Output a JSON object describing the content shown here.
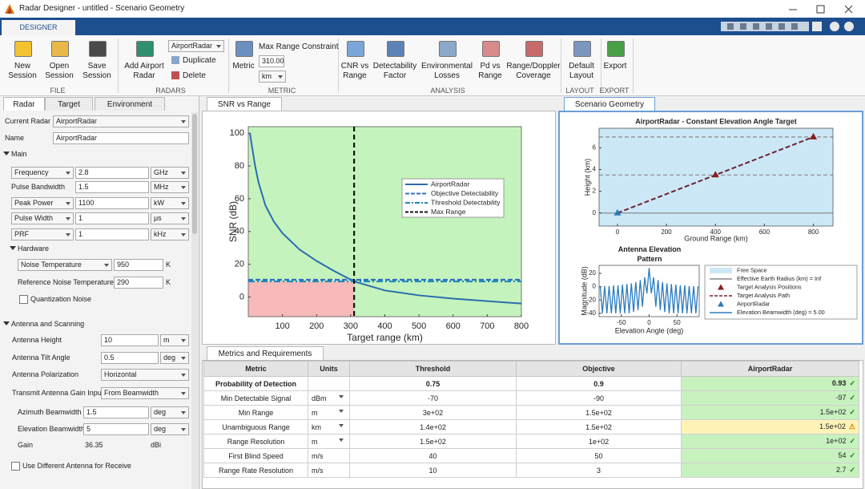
{
  "window": {
    "title": "Radar Designer - untitled - Scenario Geometry"
  },
  "toolstrip": {
    "tab": "DESIGNER",
    "groups": [
      {
        "label": "FILE",
        "buttons": [
          "New Session",
          "Open Session",
          "Save Session"
        ]
      },
      {
        "label": "RADARS",
        "buttons": [
          "Add Airport Radar"
        ],
        "radar": "AirportRadar",
        "actions": [
          "Duplicate",
          "Delete"
        ]
      },
      {
        "label": "METRIC",
        "buttons": [
          "Metric"
        ],
        "constraint": "Max Range Constraint",
        "constraint_value": "310.00",
        "constraint_unit": "km"
      },
      {
        "label": "ANALYSIS",
        "buttons": [
          "CNR vs Range",
          "Detectability Factor",
          "Environmental Losses",
          "Pd vs Range",
          "Range/Doppler Coverage"
        ]
      },
      {
        "label": "LAYOUT",
        "buttons": [
          "Default Layout"
        ]
      },
      {
        "label": "EXPORT",
        "buttons": [
          "Export"
        ]
      }
    ]
  },
  "left_panel": {
    "tabs": [
      "Radar",
      "Target",
      "Environment"
    ],
    "current_radar": {
      "label": "Current Radar",
      "value": "AirportRadar"
    },
    "name": {
      "label": "Name",
      "value": "AirportRadar"
    },
    "main": {
      "title": "Main",
      "fields": [
        {
          "label": "Frequency",
          "value": "2.8",
          "unit": "GHz"
        },
        {
          "label": "Pulse Bandwidth",
          "value": "1.5",
          "unit": "MHz"
        },
        {
          "label": "Peak Power",
          "value": "1100",
          "unit": "kW"
        },
        {
          "label": "Pulse Width",
          "value": "1",
          "unit": "μs"
        },
        {
          "label": "PRF",
          "value": "1",
          "unit": "kHz"
        }
      ]
    },
    "hardware": {
      "title": "Hardware",
      "fields": [
        {
          "label": "Noise Temperature",
          "value": "950",
          "unit": "K"
        },
        {
          "label": "Reference Noise Temperature",
          "value": "290",
          "unit": "K"
        }
      ],
      "checkbox": "Quantization Noise"
    },
    "antenna": {
      "title": "Antenna and Scanning",
      "fields": [
        {
          "label": "Antenna Height",
          "value": "10",
          "unit": "m"
        },
        {
          "label": "Antenna Tilt Angle",
          "value": "0.5",
          "unit": "deg"
        },
        {
          "label": "Antenna Polarization",
          "value": "Horizontal"
        },
        {
          "label": "Transmit Antenna Gain Input",
          "value": "From Beamwidth"
        },
        {
          "label": "Azimuth Beamwidth",
          "value": "1.5",
          "unit": "deg"
        },
        {
          "label": "Elevation Beamwidth",
          "value": "5",
          "unit": "deg"
        },
        {
          "label": "Gain",
          "value": "36.35",
          "unit": "dBi"
        }
      ],
      "checkbox": "Use Different Antenna for Receive"
    }
  },
  "snr_plot": {
    "tab": "SNR vs Range",
    "type": "line",
    "x_label": "Target range (km)",
    "y_label": "SNR (dB)",
    "xlim": [
      0,
      800
    ],
    "ylim": [
      -12,
      104
    ],
    "xticks": [
      100,
      200,
      300,
      400,
      500,
      600,
      700,
      800
    ],
    "yticks": [
      0,
      20,
      40,
      60,
      80,
      100
    ],
    "x": [
      5,
      10,
      20,
      30,
      50,
      75,
      100,
      150,
      200,
      250,
      310,
      400,
      500,
      600,
      700,
      800
    ],
    "series": [
      {
        "name": "AirportRadar",
        "color": "#2a6db0",
        "values": [
          100,
          93,
          80,
          70,
          56,
          46,
          39,
          29,
          22,
          16,
          9.5,
          4,
          1,
          -1,
          -2.5,
          -4
        ]
      }
    ],
    "objective_detectability": {
      "name": "Objective Detectability",
      "value": 10.5,
      "color": "#2f6fc4"
    },
    "threshold_detectability": {
      "name": "Threshold Detectability",
      "value": 9.5,
      "color": "#1f8bb8"
    },
    "max_range": {
      "name": "Max Range",
      "value": 310,
      "color": "#111111"
    },
    "pass_color": "#c5f3bd",
    "fail_color": "#f7b9b9"
  },
  "geometry_plot": {
    "tab": "Scenario Geometry",
    "type": "line",
    "title": "AirportRadar - Constant Elevation Angle Target",
    "x_label": "Ground Range (km)",
    "y_label": "Height (km)",
    "xlim": [
      -75,
      880
    ],
    "ylim": [
      -1.2,
      7.8
    ],
    "xticks": [
      0,
      200,
      400,
      600,
      800
    ],
    "yticks": [
      0,
      2,
      4,
      6
    ],
    "series": [
      {
        "name": "Target Analysis Path",
        "color": "#6e2234",
        "x": [
          0,
          400,
          800
        ],
        "values": [
          0,
          3.5,
          7
        ]
      },
      {
        "name": "Target Analysis Positions",
        "color": "#8a1c1c",
        "x": [
          400,
          800
        ],
        "values": [
          3.5,
          7
        ]
      },
      {
        "name": "AirportRadar",
        "color": "#2b7bbb",
        "x": [
          0
        ],
        "values": [
          0
        ]
      }
    ],
    "free_space": "Free Space",
    "free_space_color": "#cce8f6",
    "earth_radius": "Effective Earth Radius (km) = Inf"
  },
  "pattern_plot": {
    "type": "line",
    "title": "Antenna Elevation Pattern",
    "x_label": "Elevation Angle (deg)",
    "y_label": "Magnitude (dB)",
    "xlim": [
      -90,
      90
    ],
    "ylim": [
      -45,
      32
    ],
    "xticks": [
      -50,
      0,
      50
    ],
    "yticks": [
      -40,
      -20,
      0,
      20
    ],
    "x": [
      -88,
      -84,
      -80,
      -76,
      -72,
      -68,
      -64,
      -60,
      -56,
      -52,
      -48,
      -44,
      -40,
      -36,
      -32,
      -28,
      -24,
      -20,
      -16,
      -12,
      -8,
      -4,
      0,
      4,
      8,
      12,
      16,
      20,
      24,
      28,
      32,
      36,
      40,
      44,
      48,
      52,
      56,
      60,
      64,
      68,
      72,
      76,
      80,
      84,
      88
    ],
    "series": [
      {
        "color": "#2a7bc0",
        "values": [
          1,
          -40,
          1,
          -40,
          1,
          -40,
          2,
          -40,
          2,
          -40,
          3,
          -40,
          4,
          -40,
          5,
          -38,
          7,
          -35,
          10,
          -30,
          14,
          -10,
          28,
          -10,
          14,
          -30,
          10,
          -35,
          7,
          -38,
          5,
          -40,
          4,
          -40,
          3,
          -40,
          2,
          -40,
          2,
          -40,
          1,
          -40,
          1,
          -40,
          1
        ]
      }
    ],
    "beamwidth_note": "Elevation Beamwidth (deg) = 5.00"
  },
  "metrics": {
    "tab": "Metrics and Requirements",
    "columns": [
      "Metric",
      "Units",
      "Threshold",
      "Objective",
      "AirportRadar"
    ],
    "rows": [
      [
        "Probability of Detection",
        null,
        "0.75",
        "0.9",
        "0.93"
      ],
      [
        "Min Detectable Signal",
        "dBm",
        "-70",
        "-90",
        "-97"
      ],
      [
        "Min Range",
        "m",
        "3e+02",
        "1.5e+02",
        "1.5e+02"
      ],
      [
        "Unambiguous Range",
        "km",
        "1.4e+02",
        "1.5e+02",
        "1.5e+02"
      ],
      [
        "Range Resolution",
        "m",
        "1.5e+02",
        "1e+02",
        "1e+02"
      ],
      [
        "First Blind Speed",
        "m/s",
        "40",
        "50",
        "54"
      ],
      [
        "Range Rate Resolution",
        "m/s",
        "10",
        "3",
        "2.7"
      ]
    ],
    "status": [
      "✓",
      "✓",
      "✓",
      "⚠",
      "✓",
      "✓",
      "✓"
    ],
    "result_colors": [
      "#c8f1c0",
      "#c8f1c0",
      "#c8f1c0",
      "#fff3b8",
      "#c8f1c0",
      "#c8f1c0",
      "#c8f1c0"
    ],
    "status_colors": [
      "#1b7a1b",
      "#1b7a1b",
      "#1b7a1b",
      "#d08a00",
      "#1b7a1b",
      "#1b7a1b",
      "#1b7a1b"
    ]
  }
}
